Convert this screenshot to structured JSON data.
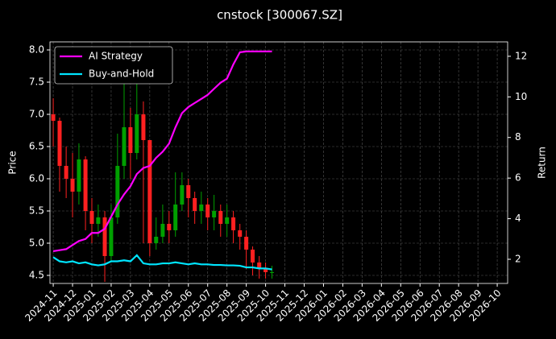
{
  "chart_data": {
    "type": "candlestick",
    "title": "cnstock [300067.SZ]",
    "y_label": "Price",
    "y2_label": "Return",
    "x": [
      0,
      0.33,
      0.67,
      1,
      1.33,
      1.67,
      2,
      2.33,
      2.67,
      3,
      3.33,
      3.67,
      4,
      4.33,
      4.67,
      5,
      5.33,
      5.67,
      6,
      6.33,
      6.67,
      7,
      7.33,
      7.67,
      8,
      8.33,
      8.67,
      9,
      9.33,
      9.67,
      10,
      10.33,
      10.67,
      11,
      11.33
    ],
    "candles": {
      "open": [
        7.0,
        6.9,
        6.2,
        6.0,
        5.8,
        6.3,
        5.5,
        5.3,
        5.4,
        4.8,
        5.4,
        6.2,
        6.8,
        6.4,
        7.0,
        6.6,
        5.0,
        5.1,
        5.3,
        5.2,
        5.6,
        5.9,
        5.7,
        5.5,
        5.6,
        5.4,
        5.5,
        5.3,
        5.4,
        5.2,
        5.1,
        4.9,
        4.7,
        4.6,
        4.55
      ],
      "high": [
        7.25,
        6.95,
        6.5,
        6.4,
        6.55,
        6.35,
        5.7,
        5.6,
        5.5,
        5.6,
        6.7,
        7.5,
        7.1,
        7.7,
        7.2,
        6.6,
        5.4,
        5.6,
        5.5,
        6.1,
        6.1,
        6.0,
        5.8,
        5.8,
        5.7,
        5.75,
        5.6,
        5.6,
        5.5,
        5.3,
        5.2,
        4.95,
        4.8,
        4.7,
        4.65
      ],
      "low": [
        6.5,
        5.8,
        5.7,
        5.4,
        5.6,
        5.2,
        5.0,
        5.1,
        4.4,
        4.7,
        5.3,
        6.0,
        6.0,
        6.3,
        5.0,
        4.8,
        4.9,
        5.0,
        5.0,
        5.1,
        5.5,
        5.4,
        5.3,
        5.3,
        5.2,
        5.2,
        5.1,
        5.1,
        5.0,
        4.9,
        4.6,
        4.5,
        4.45,
        4.45,
        4.45
      ],
      "close": [
        6.9,
        6.2,
        6.0,
        5.8,
        6.3,
        5.5,
        5.3,
        5.4,
        4.8,
        5.4,
        6.2,
        6.8,
        6.4,
        7.0,
        6.6,
        5.0,
        5.1,
        5.3,
        5.2,
        5.6,
        5.9,
        5.7,
        5.5,
        5.6,
        5.4,
        5.5,
        5.3,
        5.4,
        5.2,
        5.1,
        4.9,
        4.7,
        4.6,
        4.55,
        4.55
      ],
      "up_color": "#00a000",
      "down_color": "#ff2020"
    },
    "series": [
      {
        "name": "AI Strategy",
        "color": "#ff00ff",
        "axis": "y2",
        "values": [
          2.4,
          2.45,
          2.5,
          2.7,
          2.9,
          3.0,
          3.3,
          3.3,
          3.5,
          4.1,
          4.7,
          5.2,
          5.6,
          6.2,
          6.5,
          6.6,
          7.0,
          7.3,
          7.7,
          8.5,
          9.2,
          9.5,
          9.7,
          9.9,
          10.1,
          10.4,
          10.7,
          10.9,
          11.6,
          12.2,
          12.24,
          12.24,
          12.24,
          12.24,
          12.24
        ]
      },
      {
        "name": "Buy-and-Hold",
        "color": "#00e5ff",
        "axis": "y2",
        "values": [
          2.1,
          1.9,
          1.85,
          1.9,
          1.8,
          1.85,
          1.75,
          1.7,
          1.75,
          1.9,
          1.9,
          1.95,
          1.9,
          2.2,
          1.8,
          1.75,
          1.75,
          1.8,
          1.8,
          1.85,
          1.8,
          1.75,
          1.8,
          1.75,
          1.75,
          1.72,
          1.72,
          1.7,
          1.7,
          1.68,
          1.6,
          1.6,
          1.55,
          1.55,
          1.5
        ]
      }
    ],
    "xlim": [
      -0.17,
      23.54
    ],
    "xticks": [
      {
        "value": 0,
        "label": "2024-11"
      },
      {
        "value": 1,
        "label": "2024-12"
      },
      {
        "value": 2,
        "label": "2025-01"
      },
      {
        "value": 3,
        "label": "2025-02"
      },
      {
        "value": 4,
        "label": "2025-03"
      },
      {
        "value": 5,
        "label": "2025-04"
      },
      {
        "value": 6,
        "label": "2025-05"
      },
      {
        "value": 7,
        "label": "2025-06"
      },
      {
        "value": 8,
        "label": "2025-07"
      },
      {
        "value": 9,
        "label": "2025-08"
      },
      {
        "value": 10,
        "label": "2025-09"
      },
      {
        "value": 11,
        "label": "2025-10"
      },
      {
        "value": 12,
        "label": "2025-11"
      },
      {
        "value": 13,
        "label": "2025-12"
      },
      {
        "value": 14,
        "label": "2026-01"
      },
      {
        "value": 15,
        "label": "2026-02"
      },
      {
        "value": 16,
        "label": "2026-03"
      },
      {
        "value": 17,
        "label": "2026-04"
      },
      {
        "value": 18,
        "label": "2026-05"
      },
      {
        "value": 19,
        "label": "2026-06"
      },
      {
        "value": 20,
        "label": "2026-07"
      },
      {
        "value": 21,
        "label": "2026-08"
      },
      {
        "value": 22,
        "label": "2026-09"
      },
      {
        "value": 23,
        "label": "2026-10"
      }
    ],
    "ylim": [
      4.375,
      8.125
    ],
    "yticks": [
      4.5,
      {
        "value": 5,
        "label": "5.0"
      },
      5.5,
      {
        "value": 6,
        "label": "6.0"
      },
      6.5,
      {
        "value": 7,
        "label": "7.0"
      },
      7.5,
      {
        "value": 8,
        "label": "8.0"
      }
    ],
    "y2lim": [
      0.81,
      12.71
    ],
    "y2ticks": [
      2,
      4,
      6,
      8,
      10,
      12
    ],
    "grid": true,
    "legend": "upper left"
  }
}
